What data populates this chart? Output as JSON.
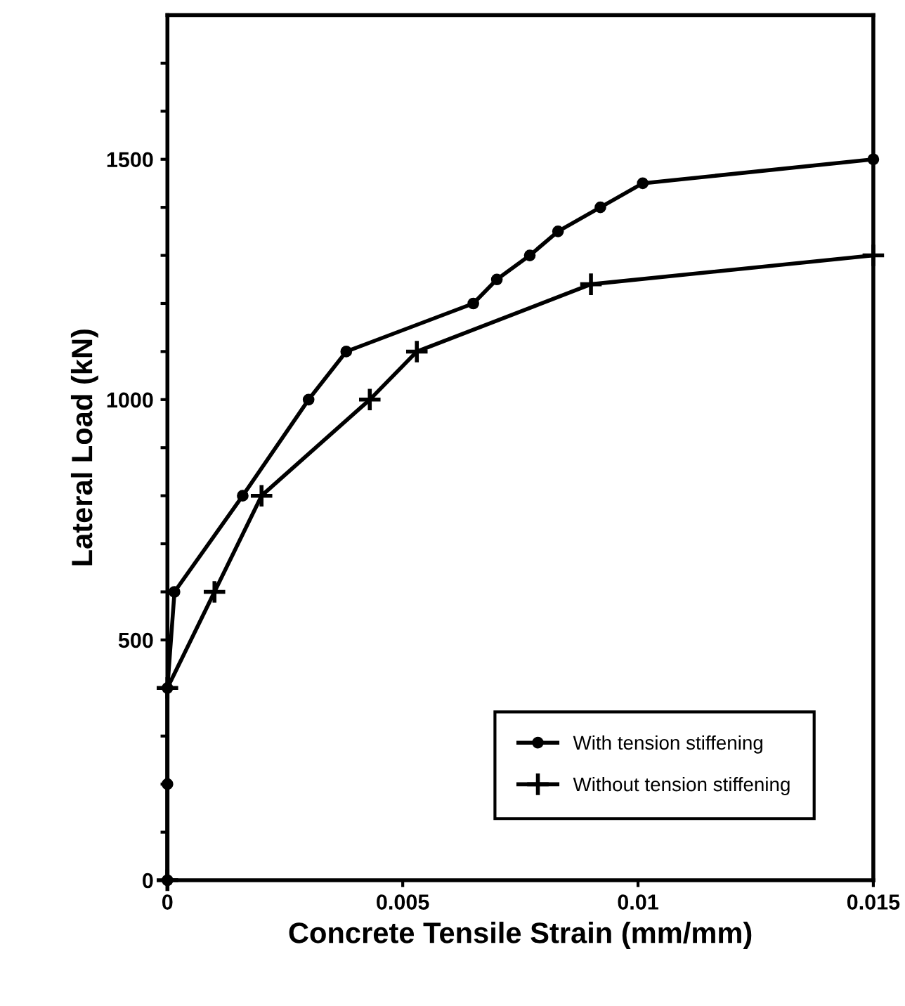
{
  "chart_data": {
    "type": "line",
    "xlabel": "Concrete Tensile Strain (mm/mm)",
    "ylabel": "Lateral Load (kN)",
    "xlim": [
      0,
      0.015
    ],
    "xticks": [
      0,
      0.005,
      0.01,
      0.015
    ],
    "ylim": [
      0,
      1800
    ],
    "yticks": [
      0,
      {
        "value": 100,
        "label": null
      },
      {
        "value": 200,
        "label": null
      },
      {
        "value": 300,
        "label": null
      },
      {
        "value": 400,
        "label": null
      },
      500,
      {
        "value": 600,
        "label": null
      },
      {
        "value": 700,
        "label": null
      },
      {
        "value": 800,
        "label": null
      },
      {
        "value": 900,
        "label": null
      },
      1000,
      {
        "value": 1100,
        "label": null
      },
      {
        "value": 1200,
        "label": null
      },
      {
        "value": 1300,
        "label": null
      },
      {
        "value": 1400,
        "label": null
      },
      1500,
      {
        "value": 1600,
        "label": null
      },
      {
        "value": 1700,
        "label": null
      }
    ],
    "grid": false,
    "legend": "bottom right",
    "line_style": "solid",
    "series": [
      {
        "name": "With tension stiffening",
        "color": "#000000",
        "marker": "circle",
        "x": [
          0,
          0,
          0,
          0.00015,
          0.0016,
          0.003,
          0.0038,
          0.0065,
          0.007,
          0.0077,
          0.0083,
          0.0092,
          0.0101,
          0.015
        ],
        "values": [
          0,
          200,
          400,
          600,
          800,
          1000,
          1100,
          1200,
          1250,
          1300,
          1350,
          1400,
          1450,
          1500
        ]
      },
      {
        "name": "Without tension stiffening",
        "color": "#000000",
        "marker": "cross",
        "x": [
          0,
          0,
          0.001,
          0.002,
          0.0043,
          0.0053,
          0.009,
          0.015
        ],
        "values": [
          0,
          400,
          600,
          800,
          1000,
          1100,
          1240,
          1300
        ]
      }
    ]
  }
}
